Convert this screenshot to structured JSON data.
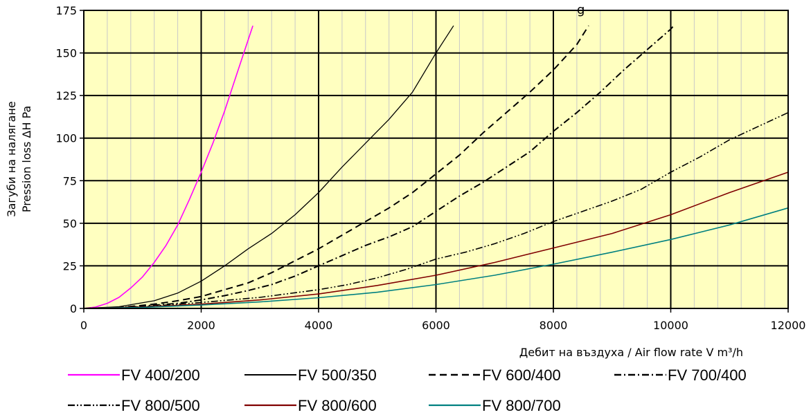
{
  "chart_data": {
    "type": "line",
    "title": "",
    "title_fragment": "g",
    "xlabel": "Дебит на въздуха / Air flow rate  V m³/h",
    "ylabel_line1": "Загуби на налягане",
    "ylabel_line2": "Pression loss ΔH Pa",
    "xlim": [
      0,
      12000
    ],
    "ylim": [
      0,
      175
    ],
    "x_ticks": [
      0,
      2000,
      4000,
      6000,
      8000,
      10000,
      12000
    ],
    "y_ticks": [
      0,
      25,
      50,
      75,
      100,
      125,
      150,
      175
    ],
    "x_major_grid": 2000,
    "x_minor_grid": 400,
    "y_major_grid": 25,
    "grid": true,
    "plot_background": "#ffffc0",
    "legend_position": "bottom",
    "series": [
      {
        "name": "FV 400/200",
        "color": "#ff00ff",
        "dash": "solid",
        "width": 1.6,
        "points": [
          [
            0,
            0
          ],
          [
            200,
            0.8
          ],
          [
            400,
            3
          ],
          [
            600,
            6.5
          ],
          [
            800,
            12
          ],
          [
            1000,
            18.5
          ],
          [
            1200,
            27
          ],
          [
            1400,
            37
          ],
          [
            1600,
            49
          ],
          [
            1800,
            64
          ],
          [
            2000,
            80
          ],
          [
            2200,
            97
          ],
          [
            2400,
            116
          ],
          [
            2600,
            137
          ],
          [
            2880,
            166
          ]
        ]
      },
      {
        "name": "FV 500/350",
        "color": "#000000",
        "dash": "solid",
        "width": 1.3,
        "points": [
          [
            0,
            0
          ],
          [
            600,
            1
          ],
          [
            1200,
            4.5
          ],
          [
            1600,
            9
          ],
          [
            2000,
            16
          ],
          [
            2400,
            25
          ],
          [
            2800,
            35
          ],
          [
            3200,
            44
          ],
          [
            3600,
            55
          ],
          [
            4000,
            68
          ],
          [
            4400,
            83
          ],
          [
            4800,
            97
          ],
          [
            5200,
            111
          ],
          [
            5600,
            127
          ],
          [
            6000,
            150
          ],
          [
            6300,
            166
          ]
        ]
      },
      {
        "name": "FV 600/400",
        "color": "#000000",
        "dash": "10,6",
        "width": 2,
        "points": [
          [
            0,
            0
          ],
          [
            600,
            0.5
          ],
          [
            1200,
            2.5
          ],
          [
            1600,
            4.5
          ],
          [
            2000,
            7
          ],
          [
            2400,
            11
          ],
          [
            2800,
            15
          ],
          [
            3200,
            21
          ],
          [
            3600,
            28
          ],
          [
            4000,
            35
          ],
          [
            4400,
            43
          ],
          [
            4800,
            51
          ],
          [
            5200,
            59
          ],
          [
            5600,
            68
          ],
          [
            6000,
            79
          ],
          [
            6400,
            90
          ],
          [
            6800,
            103
          ],
          [
            7200,
            115
          ],
          [
            7600,
            127
          ],
          [
            8000,
            140
          ],
          [
            8400,
            155
          ],
          [
            8600,
            166
          ]
        ]
      },
      {
        "name": "FV 700/400",
        "color": "#000000",
        "dash": "10,4,2,4",
        "width": 2,
        "points": [
          [
            0,
            0
          ],
          [
            800,
            0.8
          ],
          [
            1600,
            3
          ],
          [
            2000,
            5
          ],
          [
            2400,
            7.5
          ],
          [
            2800,
            10.5
          ],
          [
            3200,
            14
          ],
          [
            3600,
            19
          ],
          [
            4000,
            25
          ],
          [
            4400,
            31
          ],
          [
            4800,
            37
          ],
          [
            5200,
            42
          ],
          [
            5600,
            48
          ],
          [
            6000,
            57
          ],
          [
            6400,
            66
          ],
          [
            6800,
            74
          ],
          [
            7200,
            83
          ],
          [
            7600,
            92
          ],
          [
            8000,
            104
          ],
          [
            8400,
            115
          ],
          [
            8800,
            127
          ],
          [
            9200,
            140
          ],
          [
            9600,
            152
          ],
          [
            10000,
            164
          ],
          [
            10050,
            166
          ]
        ]
      },
      {
        "name": "FV 800/500",
        "color": "#000000",
        "dash": "10,3,2,3,2,3",
        "width": 1.6,
        "points": [
          [
            0,
            0
          ],
          [
            1000,
            1
          ],
          [
            2000,
            3.5
          ],
          [
            3000,
            6.5
          ],
          [
            4000,
            11
          ],
          [
            4500,
            14
          ],
          [
            5000,
            18
          ],
          [
            5500,
            23
          ],
          [
            6000,
            29
          ],
          [
            6500,
            33
          ],
          [
            7000,
            38
          ],
          [
            7500,
            44
          ],
          [
            8000,
            51
          ],
          [
            8500,
            57
          ],
          [
            9000,
            63
          ],
          [
            9500,
            70
          ],
          [
            10000,
            80
          ],
          [
            10500,
            89
          ],
          [
            11000,
            99
          ],
          [
            11500,
            107
          ],
          [
            12000,
            115
          ]
        ]
      },
      {
        "name": "FV 800/600",
        "color": "#800000",
        "dash": "solid",
        "width": 1.6,
        "points": [
          [
            0,
            0
          ],
          [
            1000,
            0.8
          ],
          [
            2000,
            2.5
          ],
          [
            3000,
            5
          ],
          [
            4000,
            8.5
          ],
          [
            5000,
            13.5
          ],
          [
            6000,
            19.5
          ],
          [
            7000,
            27
          ],
          [
            8000,
            35.5
          ],
          [
            9000,
            44
          ],
          [
            10000,
            55
          ],
          [
            11000,
            68
          ],
          [
            12000,
            80
          ]
        ]
      },
      {
        "name": "FV 800/700",
        "color": "#008080",
        "dash": "solid",
        "width": 1.6,
        "points": [
          [
            0,
            0
          ],
          [
            1000,
            0.6
          ],
          [
            2000,
            2
          ],
          [
            3000,
            3.8
          ],
          [
            4000,
            6.3
          ],
          [
            5000,
            9.5
          ],
          [
            6000,
            14
          ],
          [
            7000,
            19.5
          ],
          [
            8000,
            26
          ],
          [
            9000,
            33
          ],
          [
            10000,
            40.5
          ],
          [
            11000,
            49
          ],
          [
            12000,
            59
          ]
        ]
      }
    ]
  }
}
